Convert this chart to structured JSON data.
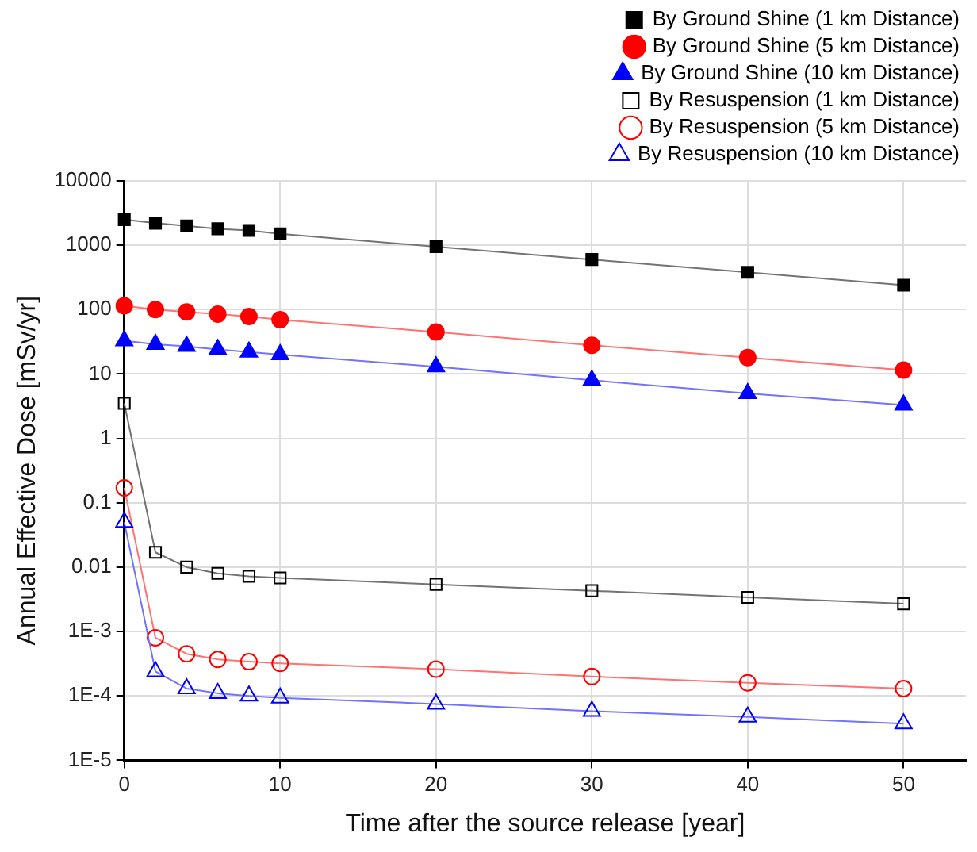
{
  "chart_data": {
    "type": "line",
    "xlabel": "Time after the source release [year]",
    "ylabel": "Annual Effective Dose [mSv/yr]",
    "x": [
      0,
      2,
      4,
      6,
      8,
      10,
      20,
      30,
      40,
      50
    ],
    "xlim": [
      0,
      54
    ],
    "xticks": [
      0,
      10,
      20,
      30,
      40,
      50
    ],
    "log": "y",
    "ylim": [
      1e-05,
      10000
    ],
    "yticks": [
      {
        "value": 1e-05,
        "label": "1E-5"
      },
      {
        "value": 0.0001,
        "label": "1E-4"
      },
      {
        "value": 0.001,
        "label": "1E-3"
      },
      0.01,
      0.1,
      1,
      10,
      100,
      1000,
      10000
    ],
    "grid": true,
    "legend": "top right",
    "series": [
      {
        "name": "By Ground Shine (1 km Distance)",
        "color": "#000000",
        "marker": "square",
        "values": [
          2500,
          2200,
          2000,
          1800,
          1700,
          1500,
          950,
          600,
          380,
          240
        ]
      },
      {
        "name": "By Ground Shine (5 km Distance)",
        "color": "#ff0000",
        "marker": "circle",
        "values": [
          115,
          100,
          92,
          85,
          78,
          70,
          45,
          28,
          18,
          11.5
        ]
      },
      {
        "name": "By Ground Shine (10 km Distance)",
        "color": "#0000ff",
        "marker": "triangle",
        "values": [
          33,
          29,
          27,
          24,
          22,
          20,
          13,
          8,
          5,
          3.3
        ]
      },
      {
        "name": "By Resuspension (1 km Distance)",
        "color": "#000000",
        "marker": "square",
        "values": [
          3.5,
          0.017,
          0.01,
          0.008,
          0.0072,
          0.0068,
          0.0054,
          0.0043,
          0.0034,
          0.0027
        ]
      },
      {
        "name": "By Resuspension (5 km Distance)",
        "color": "#ff0000",
        "marker": "circle",
        "values": [
          0.17,
          0.0008,
          0.00045,
          0.00037,
          0.00034,
          0.00032,
          0.00026,
          0.0002,
          0.00016,
          0.00013
        ]
      },
      {
        "name": "By Resuspension (10 km Distance)",
        "color": "#0000ff",
        "marker": "triangle",
        "values": [
          0.05,
          0.00024,
          0.00013,
          0.00011,
          0.0001,
          9.3e-05,
          7.5e-05,
          5.8e-05,
          4.7e-05,
          3.7e-05
        ]
      }
    ]
  }
}
